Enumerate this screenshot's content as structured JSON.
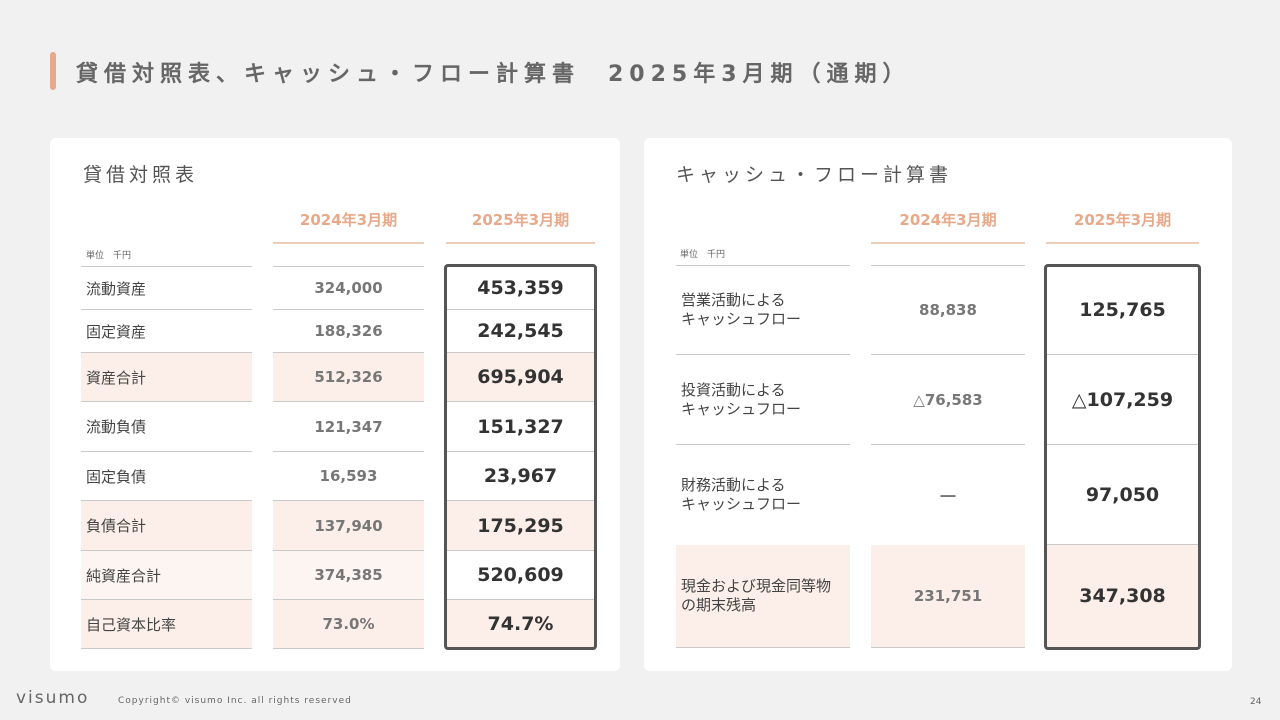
{
  "header": {
    "title": "貸借対照表、キャッシュ・フロー計算書　2025年3月期（通期）"
  },
  "balance_sheet": {
    "title": "貸借対照表",
    "year_prev": "2024年3月期",
    "year_curr": "2025年3月期",
    "unit": "単位　千円",
    "rows": [
      {
        "label": "流動資産",
        "prev": "324,000",
        "curr": "453,359"
      },
      {
        "label": "固定資産",
        "prev": "188,326",
        "curr": "242,545"
      },
      {
        "label": "資産合計",
        "prev": "512,326",
        "curr": "695,904"
      },
      {
        "label": "流動負債",
        "prev": "121,347",
        "curr": "151,327"
      },
      {
        "label": "固定負債",
        "prev": "16,593",
        "curr": "23,967"
      },
      {
        "label": "負債合計",
        "prev": "137,940",
        "curr": "175,295"
      },
      {
        "label": "純資産合計",
        "prev": "374,385",
        "curr": "520,609"
      },
      {
        "label": "自己資本比率",
        "prev": "73.0%",
        "curr": "74.7%"
      }
    ]
  },
  "cash_flow": {
    "title": "キャッシュ・フロー計算書",
    "year_prev": "2024年3月期",
    "year_curr": "2025年3月期",
    "unit": "単位　千円",
    "rows": [
      {
        "label_1": "営業活動による",
        "label_2": "キャッシュフロー",
        "prev": "88,838",
        "curr": "125,765"
      },
      {
        "label_1": "投資活動による",
        "label_2": "キャッシュフロー",
        "prev": "△76,583",
        "curr": "△107,259"
      },
      {
        "label_1": "財務活動による",
        "label_2": "キャッシュフロー",
        "prev": "―",
        "curr": "97,050"
      },
      {
        "label_1": "現金および現金同等物",
        "label_2": "の期末残高",
        "prev": "231,751",
        "curr": "347,308"
      }
    ]
  },
  "footer": {
    "logo": "visumo",
    "copyright": "Copyright© visumo Inc. all rights reserved",
    "page_number": "24"
  }
}
